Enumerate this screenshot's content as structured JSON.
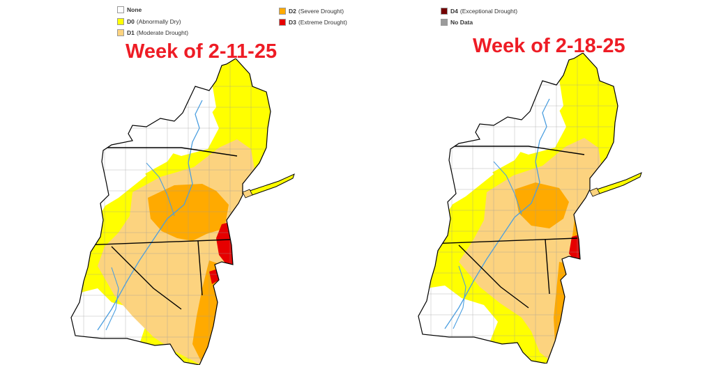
{
  "legend": {
    "items": [
      {
        "code": "None",
        "desc": "",
        "color": "#ffffff"
      },
      {
        "code": "D0",
        "desc": "(Abnormally Dry)",
        "color": "#ffff00"
      },
      {
        "code": "D1",
        "desc": "(Moderate Drought)",
        "color": "#fcd37f"
      },
      {
        "code": "D2",
        "desc": "(Severe Drought)",
        "color": "#ffaa00"
      },
      {
        "code": "D3",
        "desc": "(Extreme Drought)",
        "color": "#e60000"
      },
      {
        "code": "D4",
        "desc": "(Exceptional Drought)",
        "color": "#730000"
      },
      {
        "code": "No Data",
        "desc": "",
        "color": "#9b9b9b"
      }
    ]
  },
  "maps": [
    {
      "title": "Week of 2-11-25"
    },
    {
      "title": "Week of 2-18-25"
    }
  ],
  "colors": {
    "none": "#ffffff",
    "d0": "#ffff00",
    "d1": "#fcd37f",
    "d2": "#ffaa00",
    "d3": "#e60000",
    "border": "#000000",
    "county": "#9a9a9a",
    "river": "#4a9ee0",
    "title": "#ee1c25"
  }
}
